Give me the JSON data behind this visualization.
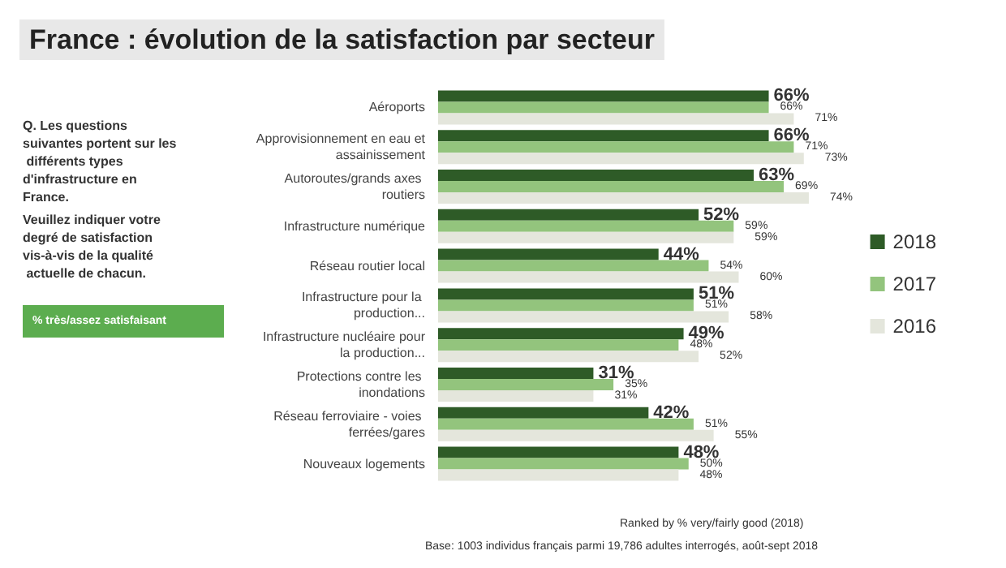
{
  "chart_data": {
    "type": "bar",
    "orientation": "horizontal",
    "title": "France : évolution de la satisfaction par secteur",
    "categories": [
      "Aéroports",
      "Approvisionnement en eau et assainissement",
      "Autoroutes/grands axes routiers",
      "Infrastructure numérique",
      "Réseau routier local",
      "Infrastructure pour la production...",
      "Infrastructure nucléaire pour la production...",
      "Protections contre les inondations",
      "Réseau ferroviaire - voies ferrées/gares",
      "Nouveaux logements"
    ],
    "series": [
      {
        "name": "2018",
        "color": "#2e5b27",
        "values": [
          66,
          66,
          63,
          52,
          44,
          51,
          49,
          31,
          42,
          48
        ],
        "value_labels": [
          "66%",
          "66%",
          "63%",
          "52%",
          "44%",
          "51%",
          "49%",
          "31%",
          "42%",
          "48%"
        ]
      },
      {
        "name": "2017",
        "color": "#93c47d",
        "values": [
          66,
          71,
          69,
          59,
          54,
          51,
          48,
          35,
          51,
          50
        ],
        "value_labels": [
          "66%",
          "71%",
          "69%",
          "59%",
          "54%",
          "51%",
          "48%",
          "35%",
          "51%",
          "50%"
        ]
      },
      {
        "name": "2016",
        "color": "#e4e6dc",
        "values": [
          71,
          73,
          74,
          59,
          60,
          58,
          52,
          31,
          55,
          48
        ],
        "value_labels": [
          "71%",
          "73%",
          "74%",
          "59%",
          "60%",
          "58%",
          "52%",
          "31%",
          "55%",
          "48%"
        ]
      }
    ],
    "legend": "right",
    "annotations": [
      "Q. Les questions suivantes portent sur les différents types d'infrastructure en France.",
      "Veuillez indiquer votre degré de satisfaction vis-à-vis de la qualité actuelle de chacun.",
      "% très/assez satisfaisant",
      "Ranked by % very/fairly good (2018)",
      "Base: 1003 individus français parmi 19,786 adultes interrogés, août-sept 2018"
    ]
  }
}
